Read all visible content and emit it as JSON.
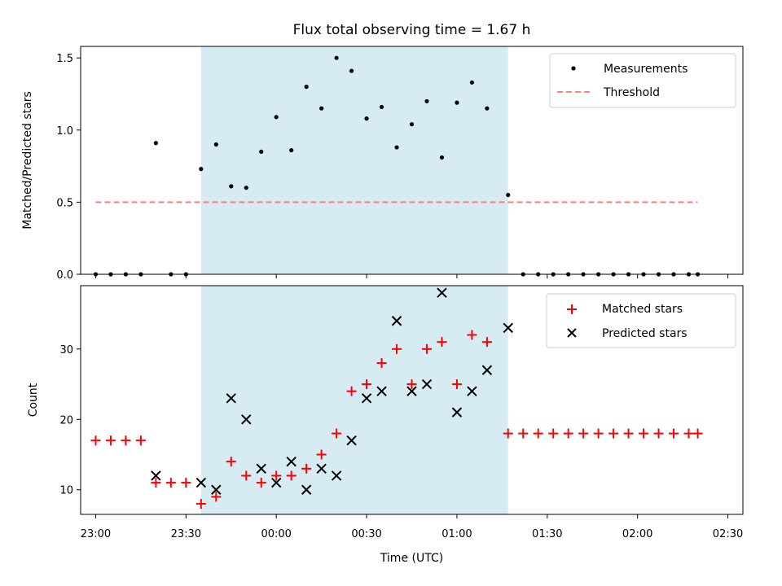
{
  "chart_data": [
    {
      "type": "scatter",
      "title": "Flux total observing time = 1.67 h",
      "ylabel": "Matched/Predicted stars",
      "xlabel": "",
      "ylim": [
        0,
        1.58
      ],
      "yticks": [
        "0.0",
        "0.5",
        "1.0",
        "1.5"
      ],
      "shaded_interval": [
        "23:35",
        "01:17"
      ],
      "legend": {
        "placement": "top-right",
        "entries": [
          "Measurements",
          "Threshold"
        ]
      },
      "series": [
        {
          "name": "Measurements",
          "marker": "dot",
          "color": "#000000",
          "x": [
            "23:00",
            "23:05",
            "23:10",
            "23:15",
            "23:20",
            "23:25",
            "23:30",
            "23:35",
            "23:40",
            "23:45",
            "23:50",
            "23:55",
            "00:00",
            "00:05",
            "00:10",
            "00:15",
            "00:20",
            "00:25",
            "00:30",
            "00:35",
            "00:40",
            "00:45",
            "00:50",
            "00:55",
            "01:00",
            "01:05",
            "01:10",
            "01:17",
            "01:22",
            "01:27",
            "01:32",
            "01:37",
            "01:42",
            "01:47",
            "01:52",
            "01:57",
            "02:02",
            "02:07",
            "02:12",
            "02:17",
            "02:20"
          ],
          "y": [
            0,
            0,
            0,
            0,
            0.91,
            0,
            0,
            0.73,
            0.9,
            0.61,
            0.6,
            0.85,
            1.09,
            0.86,
            1.3,
            1.15,
            1.5,
            1.41,
            1.08,
            1.16,
            0.88,
            1.04,
            1.2,
            0.81,
            1.19,
            1.33,
            1.15,
            0.55,
            0,
            0,
            0,
            0,
            0,
            0,
            0,
            0,
            0,
            0,
            0,
            0,
            0
          ]
        },
        {
          "name": "Threshold",
          "line_style": "dashed",
          "color": "#ff7f7f",
          "x": [
            "23:00",
            "02:20"
          ],
          "y": [
            0.5,
            0.5
          ]
        }
      ]
    },
    {
      "type": "scatter",
      "title": "",
      "ylabel": "Count",
      "xlabel": "Time (UTC)",
      "ylim": [
        6.5,
        39
      ],
      "yticks": [
        "10",
        "20",
        "30"
      ],
      "xticks": [
        "23:00",
        "23:30",
        "00:00",
        "00:30",
        "01:00",
        "01:30",
        "02:00",
        "02:30"
      ],
      "shaded_interval": [
        "23:35",
        "01:17"
      ],
      "legend": {
        "placement": "top-right",
        "entries": [
          "Matched stars",
          "Predicted stars"
        ]
      },
      "series": [
        {
          "name": "Matched stars",
          "marker": "plus",
          "color": "#ff0000",
          "x": [
            "23:00",
            "23:05",
            "23:10",
            "23:15",
            "23:20",
            "23:25",
            "23:30",
            "23:35",
            "23:40",
            "23:45",
            "23:50",
            "23:55",
            "00:00",
            "00:05",
            "00:10",
            "00:15",
            "00:20",
            "00:25",
            "00:30",
            "00:35",
            "00:40",
            "00:45",
            "00:50",
            "00:55",
            "01:00",
            "01:05",
            "01:10",
            "01:17",
            "01:22",
            "01:27",
            "01:32",
            "01:37",
            "01:42",
            "01:47",
            "01:52",
            "01:57",
            "02:02",
            "02:07",
            "02:12",
            "02:17",
            "02:20"
          ],
          "y": [
            17,
            17,
            17,
            17,
            11,
            11,
            11,
            8,
            9,
            14,
            12,
            11,
            12,
            12,
            13,
            15,
            18,
            24,
            25,
            28,
            30,
            25,
            30,
            31,
            25,
            32,
            31,
            18,
            18,
            18,
            18,
            18,
            18,
            18,
            18,
            18,
            18,
            18,
            18,
            18,
            18
          ]
        },
        {
          "name": "Predicted stars",
          "marker": "x",
          "color": "#000000",
          "x": [
            "23:20",
            "23:35",
            "23:40",
            "23:45",
            "23:50",
            "23:55",
            "00:00",
            "00:05",
            "00:10",
            "00:15",
            "00:20",
            "00:25",
            "00:30",
            "00:35",
            "00:40",
            "00:45",
            "00:50",
            "00:55",
            "01:00",
            "01:05",
            "01:10",
            "01:17"
          ],
          "y": [
            12,
            11,
            10,
            23,
            20,
            13,
            11,
            14,
            10,
            13,
            12,
            17,
            23,
            24,
            34,
            24,
            25,
            38,
            21,
            24,
            27,
            33
          ]
        }
      ]
    }
  ]
}
